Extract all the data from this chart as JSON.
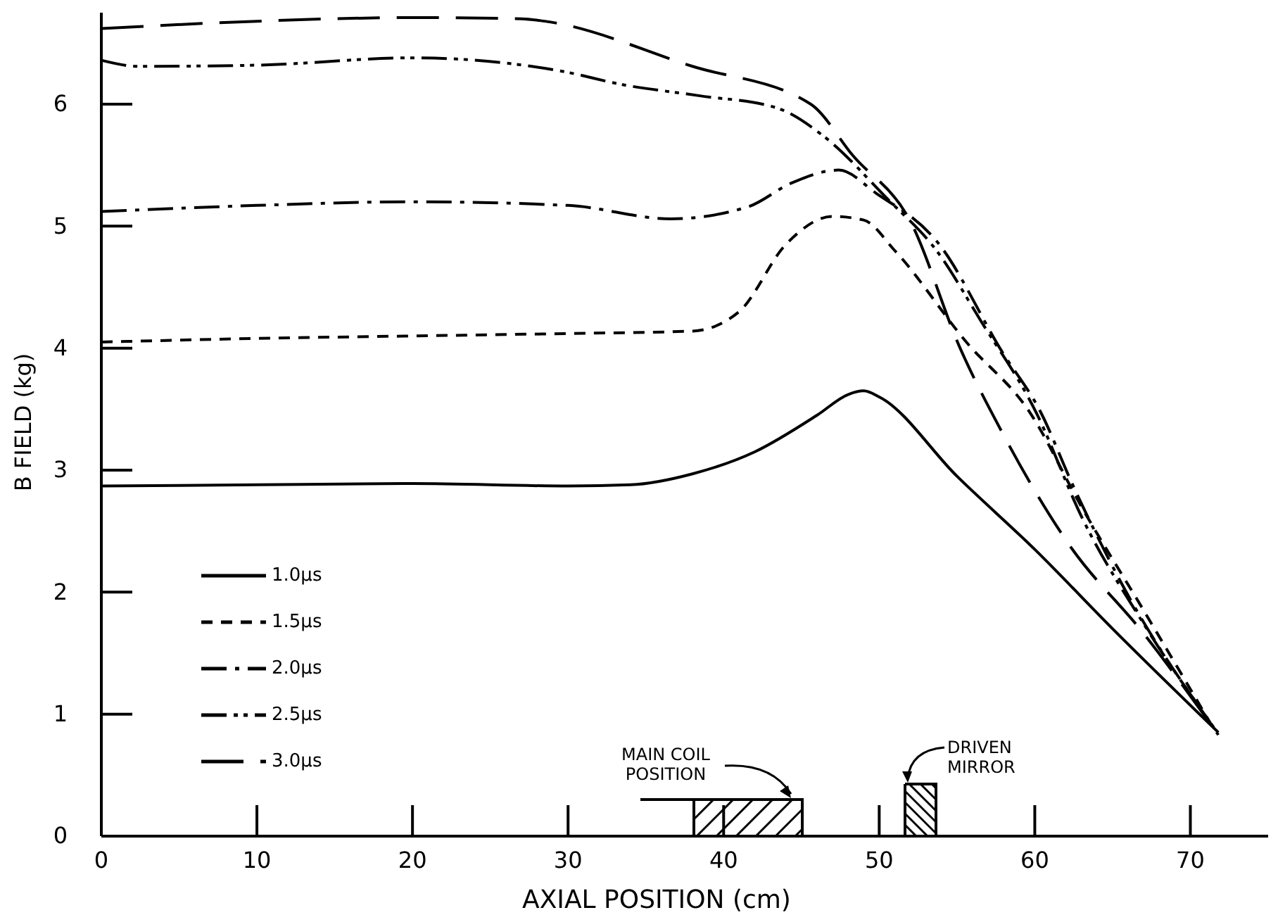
{
  "chart_data": {
    "type": "line",
    "xlabel": "AXIAL POSITION (cm)",
    "ylabel": "B FIELD (kg)",
    "xlim": [
      0,
      75
    ],
    "ylim": [
      0,
      6.75
    ],
    "xticks": [
      0,
      10,
      20,
      30,
      40,
      50,
      60,
      70
    ],
    "yticks": [
      0,
      1,
      2,
      3,
      4,
      5,
      6
    ],
    "grid": false,
    "legend": "bottom left",
    "marker": "none",
    "series": [
      {
        "name": "1.0μs",
        "color": "#000000",
        "line_style": "solid",
        "x": [
          0,
          10,
          20,
          30,
          34,
          38,
          42,
          46,
          48,
          49,
          50,
          55,
          60,
          65,
          71.8
        ],
        "values": [
          2.87,
          2.88,
          2.89,
          2.87,
          2.88,
          2.97,
          3.15,
          3.45,
          3.62,
          3.65,
          3.6,
          2.95,
          2.35,
          1.7,
          0.85
        ]
      },
      {
        "name": "1.5μs",
        "color": "#000000",
        "line_style": "dashed",
        "x": [
          0,
          10,
          20,
          30,
          38,
          41,
          44,
          47,
          49,
          51,
          55.6,
          59.7,
          63,
          67,
          71.5
        ],
        "values": [
          4.05,
          4.08,
          4.1,
          4.12,
          4.14,
          4.3,
          4.85,
          5.08,
          5.05,
          4.8,
          4.05,
          3.47,
          2.7,
          1.85,
          0.88
        ]
      },
      {
        "name": "2.0μs",
        "color": "#000000",
        "line_style": "dashdot",
        "x": [
          0,
          10,
          20,
          30,
          36.6,
          41.6,
          44.3,
          47.4,
          49.8,
          53.8,
          57.9,
          60.4,
          62.4,
          65.5,
          71.5
        ],
        "values": [
          5.12,
          5.17,
          5.2,
          5.17,
          5.06,
          5.16,
          5.35,
          5.46,
          5.27,
          4.86,
          3.97,
          3.47,
          2.89,
          2.09,
          0.89
        ]
      },
      {
        "name": "2.5μs",
        "color": "#000000",
        "line_style": "dashdotdot",
        "x": [
          0,
          2.4,
          10,
          20,
          29.6,
          33.5,
          38.4,
          43.4,
          46.5,
          50.4,
          53.8,
          56.5,
          60.1,
          63,
          67,
          71.5
        ],
        "values": [
          6.36,
          6.31,
          6.32,
          6.38,
          6.27,
          6.16,
          6.07,
          5.97,
          5.73,
          5.24,
          4.78,
          4.23,
          3.47,
          2.62,
          1.74,
          0.89
        ]
      },
      {
        "name": "3.0μs",
        "color": "#000000",
        "line_style": "longdash",
        "x": [
          0,
          10,
          20,
          27,
          28.5,
          38,
          45.6,
          48.3,
          52,
          55.2,
          57.9,
          62.2,
          67,
          71.8
        ],
        "values": [
          6.62,
          6.68,
          6.71,
          6.7,
          6.68,
          6.31,
          6.0,
          5.58,
          5.04,
          4.0,
          3.31,
          2.39,
          1.66,
          0.83
        ]
      }
    ],
    "annotations": [
      "MAIN COIL\nPOSITION",
      "DRIVEN\nMIRROR"
    ]
  }
}
